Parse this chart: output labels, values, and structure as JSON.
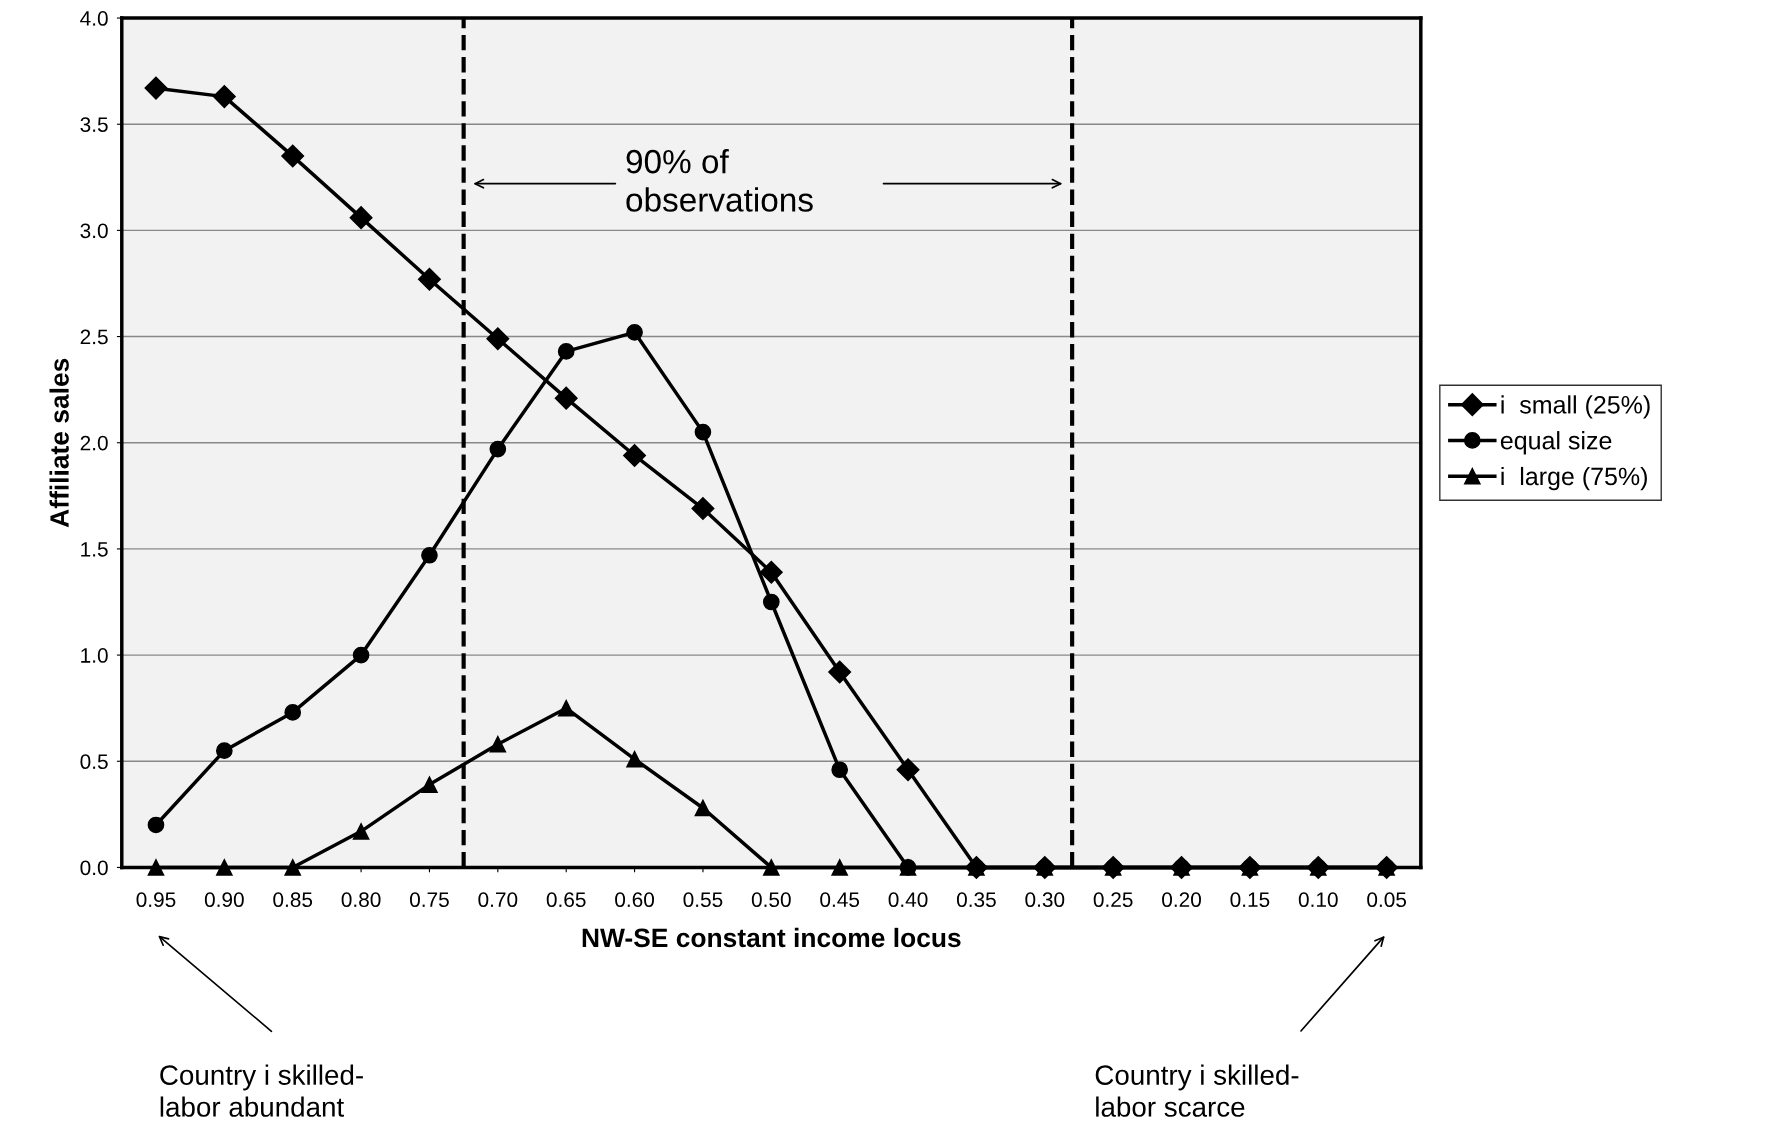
{
  "chart_data": {
    "type": "line",
    "xlabel": "NW-SE constant income locus",
    "ylabel": "Affiliate sales",
    "x": [
      0.95,
      0.9,
      0.85,
      0.8,
      0.75,
      0.7,
      0.65,
      0.6,
      0.55,
      0.5,
      0.45,
      0.4,
      0.35,
      0.3,
      0.25,
      0.2,
      0.15,
      0.1,
      0.05
    ],
    "series": [
      {
        "name": "i  small (25%)",
        "color": "#000000",
        "marker": "diamond",
        "values": [
          3.67,
          3.63,
          3.35,
          3.06,
          2.77,
          2.49,
          2.21,
          1.94,
          1.69,
          1.39,
          0.92,
          0.46,
          0,
          0,
          0,
          0,
          0,
          0,
          0
        ]
      },
      {
        "name": "equal size",
        "color": "#000000",
        "marker": "circle",
        "values": [
          0.2,
          0.55,
          0.73,
          1.0,
          1.47,
          1.97,
          2.43,
          2.52,
          2.05,
          1.25,
          0.46,
          0,
          0,
          0,
          0,
          0,
          0,
          0,
          0
        ]
      },
      {
        "name": "i  large (75%)",
        "color": "#000000",
        "marker": "triangle",
        "values": [
          0,
          0,
          0,
          0.17,
          0.39,
          0.58,
          0.75,
          0.51,
          0.28,
          0,
          0,
          0,
          0,
          0,
          0,
          0,
          0,
          0,
          0
        ]
      }
    ],
    "xlim": [
      0.975,
      0.025
    ],
    "xticks": [
      {
        "value": 0.95,
        "label": "0.95"
      },
      {
        "value": 0.9,
        "label": "0.90"
      },
      {
        "value": 0.85,
        "label": "0.85"
      },
      {
        "value": 0.8,
        "label": "0.80"
      },
      {
        "value": 0.75,
        "label": "0.75"
      },
      {
        "value": 0.7,
        "label": "0.70"
      },
      {
        "value": 0.65,
        "label": "0.65"
      },
      {
        "value": 0.6,
        "label": "0.60"
      },
      {
        "value": 0.55,
        "label": "0.55"
      },
      {
        "value": 0.5,
        "label": "0.50"
      },
      {
        "value": 0.45,
        "label": "0.45"
      },
      {
        "value": 0.4,
        "label": "0.40"
      },
      {
        "value": 0.35,
        "label": "0.35"
      },
      {
        "value": 0.3,
        "label": "0.30"
      },
      {
        "value": 0.25,
        "label": "0.25"
      },
      {
        "value": 0.2,
        "label": "0.20"
      },
      {
        "value": 0.15,
        "label": "0.15"
      },
      {
        "value": 0.1,
        "label": "0.10"
      },
      {
        "value": 0.05,
        "label": "0.05"
      }
    ],
    "ylim": [
      0,
      4
    ],
    "yticks": [
      {
        "value": 0,
        "label": "0.0"
      },
      {
        "value": 0.5,
        "label": "0.5"
      },
      {
        "value": 1,
        "label": "1.0"
      },
      {
        "value": 1.5,
        "label": "1.5"
      },
      {
        "value": 2,
        "label": "2.0"
      },
      {
        "value": 2.5,
        "label": "2.5"
      },
      {
        "value": 3,
        "label": "3.0"
      },
      {
        "value": 3.5,
        "label": "3.5"
      },
      {
        "value": 4,
        "label": "4.0"
      }
    ],
    "ref_lines": [
      {
        "axis": "x",
        "value": 0.725,
        "color": "#000000",
        "line_style": "dashed"
      },
      {
        "axis": "x",
        "value": 0.28,
        "color": "#000000",
        "line_style": "dashed"
      }
    ],
    "annotations": [
      "90% of\nobservations",
      "Country i skilled-\nlabor abundant",
      "Country i skilled-\nlabor scarce"
    ],
    "grid": "y",
    "legend": "right",
    "line_style": "solid"
  }
}
